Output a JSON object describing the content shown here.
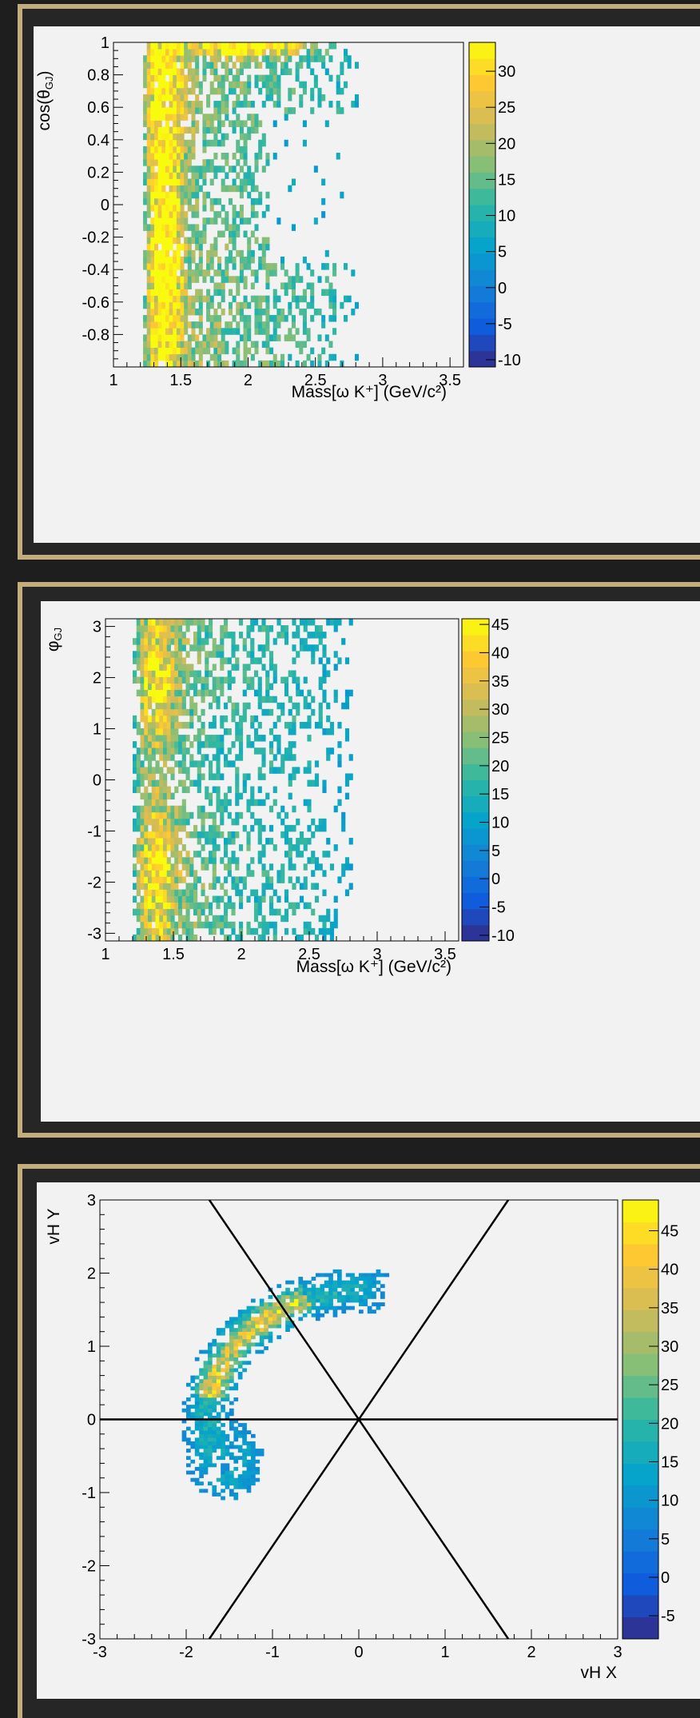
{
  "chart_data": [
    {
      "type": "heatmap",
      "title": "",
      "xlabel": "Mass[ω K⁺] (GeV/c²)",
      "ylabel": "cos(θGJ)",
      "xlim": [
        1.0,
        3.6
      ],
      "ylim": [
        -1.0,
        1.0
      ],
      "x_ticks": [
        "1",
        "1.5",
        "2",
        "2.5",
        "3",
        "3.5"
      ],
      "y_ticks": [
        "-0.8",
        "-0.6",
        "-0.4",
        "-0.2",
        "0",
        "0.2",
        "0.4",
        "0.6",
        "0.8",
        "1"
      ],
      "colorbar": {
        "min": -11,
        "max": 34,
        "ticks": [
          "-10",
          "-5",
          "0",
          "5",
          "10",
          "15",
          "20",
          "25",
          "30"
        ]
      },
      "bins": {
        "nx": 58,
        "ny": 50,
        "x_range": [
          1.22,
          2.82
        ]
      },
      "density": {
        "x_profile": [
          [
            1.22,
            0.35
          ],
          [
            1.28,
            0.95
          ],
          [
            1.4,
            1.0
          ],
          [
            1.6,
            0.75
          ],
          [
            1.9,
            0.6
          ],
          [
            2.2,
            0.5
          ],
          [
            2.5,
            0.38
          ],
          [
            2.7,
            0.28
          ],
          [
            2.8,
            0.1
          ]
        ],
        "y_profile": [
          [
            -1.0,
            0.95
          ],
          [
            -0.5,
            0.85
          ],
          [
            0.0,
            0.75
          ],
          [
            0.5,
            0.8
          ],
          [
            1.0,
            1.0
          ]
        ],
        "features": [
          {
            "x": 1.38,
            "y": 0.0,
            "sx": 0.08,
            "sy": 1.0,
            "amp": 1.2
          },
          {
            "x": 2.05,
            "y": 0.98,
            "sx": 0.25,
            "sy": 0.04,
            "amp": 1.6
          },
          {
            "x": 1.4,
            "y": 0.3,
            "sx": 0.06,
            "sy": 0.05,
            "amp": 0.6
          }
        ],
        "void": {
          "x_from": 2.15,
          "y_from": -0.35,
          "y_to": 0.55,
          "strength": 0.85
        },
        "z_scale": 22
      }
    },
    {
      "type": "heatmap",
      "title": "",
      "xlabel": "Mass[ω K⁺] (GeV/c²)",
      "ylabel": "φGJ",
      "xlim": [
        1.0,
        3.6
      ],
      "ylim": [
        -3.15,
        3.15
      ],
      "x_ticks": [
        "1",
        "1.5",
        "2",
        "2.5",
        "3",
        "3.5"
      ],
      "y_ticks": [
        "-3",
        "-2",
        "-1",
        "0",
        "1",
        "2",
        "3"
      ],
      "colorbar": {
        "min": -11,
        "max": 46,
        "ticks": [
          "-10",
          "-5",
          "0",
          "5",
          "10",
          "15",
          "20",
          "25",
          "30",
          "35",
          "40",
          "45"
        ]
      },
      "bins": {
        "nx": 58,
        "ny": 50,
        "x_range": [
          1.2,
          2.82
        ]
      },
      "density": {
        "x_profile": [
          [
            1.2,
            0.3
          ],
          [
            1.28,
            0.9
          ],
          [
            1.38,
            1.0
          ],
          [
            1.6,
            0.65
          ],
          [
            1.9,
            0.45
          ],
          [
            2.3,
            0.35
          ],
          [
            2.6,
            0.28
          ],
          [
            2.8,
            0.1
          ]
        ],
        "y_profile": [
          [
            -3.15,
            1.0
          ],
          [
            -1.5,
            1.0
          ],
          [
            0.0,
            0.75
          ],
          [
            1.5,
            1.0
          ],
          [
            3.15,
            1.0
          ]
        ],
        "features": [
          {
            "x": 1.38,
            "y": -1.8,
            "sx": 0.08,
            "sy": 0.7,
            "amp": 0.6
          },
          {
            "x": 1.4,
            "y": 2.0,
            "sx": 0.08,
            "sy": 0.6,
            "amp": 0.5
          }
        ],
        "void": null,
        "z_scale": 30
      }
    },
    {
      "type": "heatmap",
      "title": "",
      "xlabel": "vH X",
      "ylabel": "vH Y",
      "xlim": [
        -3.0,
        3.0
      ],
      "ylim": [
        -3.0,
        3.0
      ],
      "x_ticks": [
        "-3",
        "-2",
        "-1",
        "0",
        "1",
        "2",
        "3"
      ],
      "y_ticks": [
        "-3",
        "-2",
        "-1",
        "0",
        "1",
        "2",
        "3"
      ],
      "colorbar": {
        "min": -8,
        "max": 49,
        "ticks": [
          "-5",
          "0",
          "5",
          "10",
          "15",
          "20",
          "25",
          "30",
          "35",
          "40",
          "45"
        ]
      },
      "bins": {
        "nx": 120,
        "ny": 120,
        "x_range": [
          -3.0,
          3.0
        ]
      },
      "region": {
        "arc": {
          "center": [
            0.0,
            0.0
          ],
          "r_inner": 1.45,
          "r_outer": 2.05,
          "angle_from_deg": 80,
          "angle_to_deg": 205
        },
        "lobe": {
          "center": [
            -1.55,
            -0.55
          ],
          "rx": 0.45,
          "ry": 0.55
        },
        "ridge": {
          "r": 1.75,
          "angle_from_deg": 110,
          "angle_to_deg": 170,
          "amp": 1.1
        },
        "z_scale": 22
      },
      "lines": [
        {
          "from": [
            -3.0,
            0.0
          ],
          "to": [
            3.0,
            0.0
          ]
        },
        {
          "from": [
            -1.7321,
            -3.0
          ],
          "to": [
            1.7321,
            3.0
          ]
        },
        {
          "from": [
            -1.7321,
            3.0
          ],
          "to": [
            1.7321,
            -3.0
          ]
        }
      ]
    }
  ]
}
